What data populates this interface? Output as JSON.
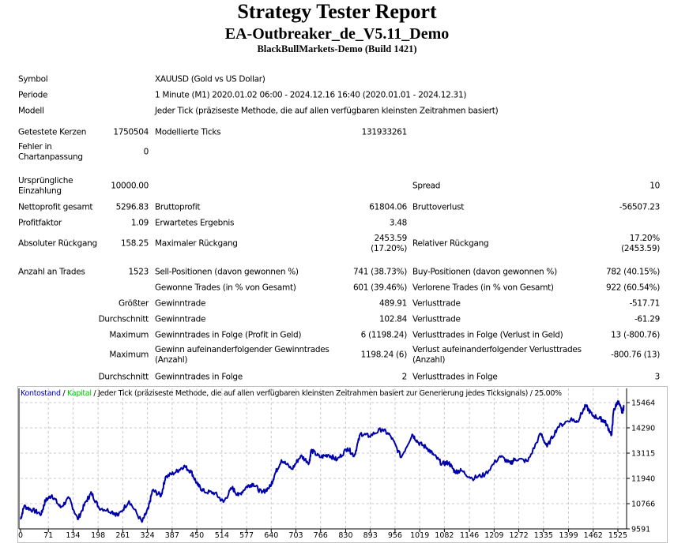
{
  "header": {
    "title": "Strategy Tester Report",
    "ea_name": "EA-Outbreaker_de_V5.11_Demo",
    "server": "BlackBullMarkets-Demo (Build 1421)"
  },
  "info": {
    "symbol_label": "Symbol",
    "symbol": "XAUUSD (Gold vs US Dollar)",
    "period_label": "Periode",
    "period": "1 Minute (M1) 2020.01.02 06:00 - 2024.12.16 16:40 (2020.01.01 - 2024.12.31)",
    "model_label": "Modell",
    "model": "Jeder Tick (präziseste Methode, die auf allen verfügbaren kleinsten Zeitrahmen basiert)"
  },
  "stats": {
    "bars_label": "Getestete Kerzen",
    "bars": "1750504",
    "ticks_label": "Modellierte Ticks",
    "ticks": "131933261",
    "errors_label": "Fehler in Chartanpassung",
    "errors": "0",
    "deposit_label": "Ursprüngliche Einzahlung",
    "deposit": "10000.00",
    "spread_label": "Spread",
    "spread": "10",
    "net_label": "Nettoprofit gesamt",
    "net": "5296.83",
    "gross_profit_label": "Bruttoprofit",
    "gross_profit": "61804.06",
    "gross_loss_label": "Bruttoverlust",
    "gross_loss": "-56507.23",
    "pf_label": "Profitfaktor",
    "pf": "1.09",
    "expected_label": "Erwartetes Ergebnis",
    "expected": "3.48",
    "abs_dd_label": "Absoluter Rückgang",
    "abs_dd": "158.25",
    "max_dd_label": "Maximaler Rückgang",
    "max_dd": "2453.59",
    "max_dd_pct": "(17.20%)",
    "rel_dd_label": "Relativer Rückgang",
    "rel_dd": "17.20%",
    "rel_dd_val": "(2453.59)",
    "trades_label": "Anzahl an Trades",
    "trades": "1523",
    "sell_label": "Sell-Positionen (davon gewonnen %)",
    "sell": "741 (38.73%)",
    "buy_label": "Buy-Positionen (davon gewonnen %)",
    "buy": "782 (40.15%)",
    "won_label": "Gewonne Trades (in % von Gesamt)",
    "won": "601 (39.46%)",
    "lost_label": "Verlorene Trades (in % von Gesamt)",
    "lost": "922 (60.54%)",
    "largest_label": "Größter",
    "largest_win_label": "Gewinntrade",
    "largest_win": "489.91",
    "largest_loss_label": "Verlusttrade",
    "largest_loss": "-517.71",
    "avg_label": "Durchschnitt",
    "avg_win_label": "Gewinntrade",
    "avg_win": "102.84",
    "avg_loss_label": "Verlusttrade",
    "avg_loss": "-61.29",
    "max_label": "Maximum",
    "max_cons_win_label": "Gewinntrades in Folge (Profit in Geld)",
    "max_cons_win": "6 (1198.24)",
    "max_cons_loss_label": "Verlusttrades in Folge (Verlust in Geld)",
    "max_cons_loss": "13 (-800.76)",
    "max2_label": "Maximum",
    "max_cons_profit_label": "Gewinn aufeinanderfolgender Gewinntrades (Anzahl)",
    "max_cons_profit": "1198.24 (6)",
    "max_cons_lossamt_label": "Verlust aufeinanderfolgender Verlusttrades (Anzahl)",
    "max_cons_lossamt": "-800.76 (13)",
    "avg2_label": "Durchschnitt",
    "avg_cons_win_label": "Gewinntrades in Folge",
    "avg_cons_win": "2",
    "avg_cons_loss_label": "Verlusttrades in Folge",
    "avg_cons_loss": "3"
  },
  "chart_data": {
    "type": "line",
    "legend": {
      "balance": "Kontostand",
      "sep1": " / ",
      "equity": "Kapital",
      "rest": " / Jeder Tick (präziseste Methode, die auf allen verfügbaren kleinsten Zeitrahmen basiert zur Generierung jedes Ticksignals) / 25.00%"
    },
    "colors": {
      "balance": "#0000aa",
      "equity": "#00c000",
      "grid": "#c8c8c8"
    },
    "xticks": [
      0,
      71,
      134,
      198,
      261,
      324,
      387,
      450,
      514,
      577,
      640,
      703,
      766,
      830,
      893,
      956,
      1019,
      1082,
      1146,
      1209,
      1272,
      1335,
      1399,
      1462,
      1525
    ],
    "yticks": [
      15464,
      14290,
      13115,
      11940,
      10766,
      9591
    ],
    "xlim": [
      0,
      1545
    ],
    "ylim": [
      9591,
      15700
    ],
    "series": [
      {
        "name": "Kontostand",
        "x": [
          0,
          9,
          31,
          53,
          63,
          80,
          102,
          124,
          146,
          168,
          181,
          200,
          233,
          250,
          277,
          310,
          326,
          337,
          359,
          370,
          397,
          417,
          436,
          452,
          469,
          496,
          518,
          540,
          556,
          578,
          594,
          616,
          638,
          649,
          666,
          693,
          715,
          737,
          742,
          764,
          786,
          808,
          835,
          852,
          868,
          890,
          923,
          945,
          972,
          1000,
          1016,
          1038,
          1054,
          1076,
          1093,
          1109,
          1125,
          1153,
          1186,
          1224,
          1251,
          1262,
          1295,
          1328,
          1344,
          1372,
          1405,
          1421,
          1443,
          1459,
          1481,
          1492,
          1509,
          1514,
          1525,
          1536,
          1541
        ],
        "y": [
          10033,
          10648,
          10463,
          10279,
          10893,
          11164,
          10586,
          11016,
          10033,
          10893,
          11262,
          10586,
          10402,
          10218,
          10893,
          9910,
          10525,
          11385,
          11139,
          12000,
          12245,
          12515,
          12245,
          11631,
          11323,
          11262,
          10832,
          11508,
          11139,
          11569,
          11692,
          11262,
          11569,
          12122,
          12798,
          12368,
          12982,
          12675,
          13253,
          12921,
          13044,
          12798,
          13351,
          12982,
          14027,
          13904,
          14235,
          13904,
          12921,
          13990,
          13597,
          13351,
          13044,
          12614,
          12675,
          12245,
          12306,
          11938,
          12122,
          12982,
          12614,
          12859,
          12736,
          14027,
          13412,
          14334,
          14702,
          14580,
          15317,
          14887,
          14702,
          14580,
          13965,
          15071,
          15538,
          15002,
          15317
        ]
      }
    ]
  }
}
